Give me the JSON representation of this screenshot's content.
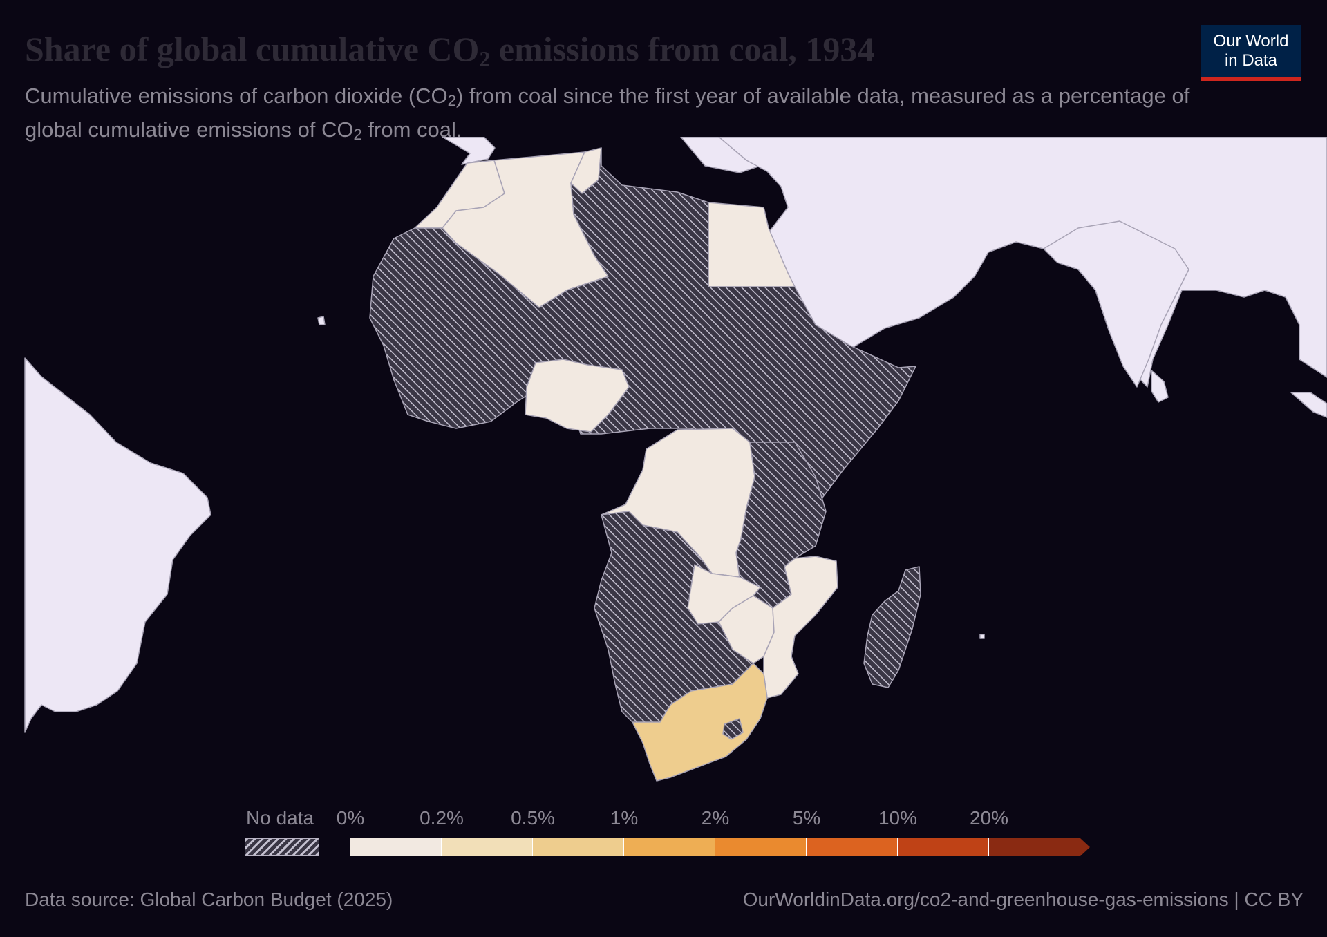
{
  "title": {
    "prefix": "Share of global cumulative CO",
    "subscript": "2",
    "suffix": " emissions from coal, 1934"
  },
  "subtitle": {
    "part1": "Cumulative emissions of carbon dioxide (CO",
    "sub1": "2",
    "part2": ") from coal since the first year of available data, measured as a percentage of global cumulative emissions of CO",
    "sub2": "2",
    "part3": " from coal."
  },
  "logo": {
    "line1": "Our World",
    "line2": "in Data"
  },
  "legend": {
    "no_data_label": "No data",
    "ticks": [
      "0%",
      "0.2%",
      "0.5%",
      "1%",
      "2%",
      "5%",
      "10%",
      "20%"
    ],
    "bin_colors": [
      "#f2e9e1",
      "#f2dfb8",
      "#eecd8e",
      "#eeae54",
      "#ea8a2f",
      "#dc6320",
      "#bf4216",
      "#8a2a12"
    ]
  },
  "colors": {
    "no_data_fill": "#3a3645",
    "other_land": "#ede7f5",
    "border": "#a8a3b5",
    "bin_0": "#f2e9e1",
    "bin_02": "#eecd8e"
  },
  "map_data": {
    "type": "choropleth",
    "year": "1934",
    "highlighted_regions": [
      {
        "region": "Morocco",
        "bin": "0%"
      },
      {
        "region": "Algeria",
        "bin": "0%"
      },
      {
        "region": "Tunisia",
        "bin": "0%"
      },
      {
        "region": "Egypt",
        "bin": "0%"
      },
      {
        "region": "Nigeria",
        "bin": "0%"
      },
      {
        "region": "Democratic Republic of Congo",
        "bin": "0%"
      },
      {
        "region": "Zambia",
        "bin": "0%"
      },
      {
        "region": "Zimbabwe",
        "bin": "0%"
      },
      {
        "region": "Mozambique",
        "bin": "0%"
      },
      {
        "region": "South Africa",
        "bin": "0.2%"
      }
    ],
    "no_data_regions": "most other African countries and Madagascar"
  },
  "footer": {
    "source": "Data source: Global Carbon Budget (2025)",
    "url": "OurWorldinData.org/co2-and-greenhouse-gas-emissions | CC BY"
  }
}
